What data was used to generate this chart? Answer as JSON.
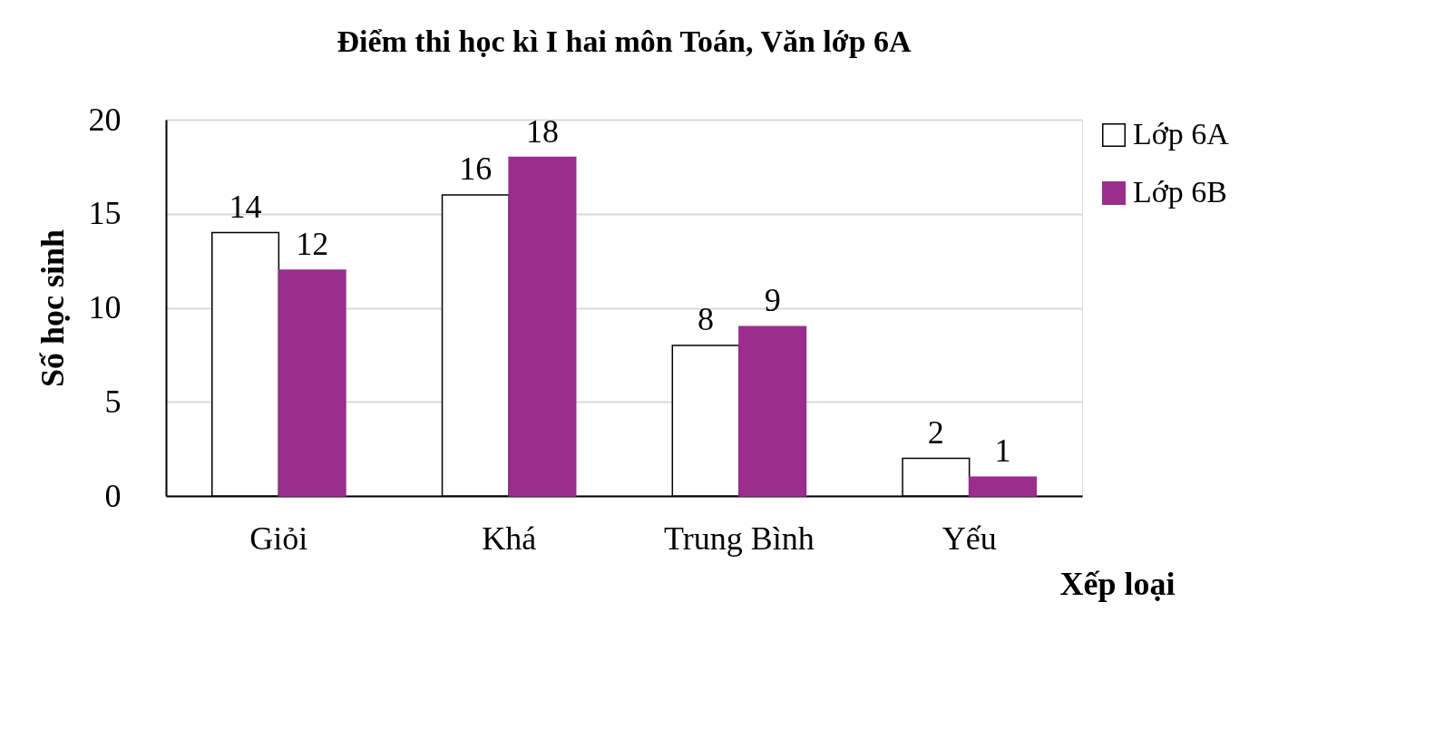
{
  "chart_data": {
    "type": "bar",
    "title": "Điểm thi học kì I hai môn Toán, Văn lớp 6A",
    "xlabel": "Xếp loại",
    "ylabel": "Số học sinh",
    "categories": [
      "Giỏi",
      "Khá",
      "Trung Bình",
      "Yếu"
    ],
    "series": [
      {
        "name": "Lớp 6A",
        "color": "#ffffff",
        "values": [
          14,
          16,
          8,
          2
        ]
      },
      {
        "name": "Lớp 6B",
        "color": "#9b2d8f",
        "values": [
          12,
          18,
          9,
          1
        ]
      }
    ],
    "ylim": [
      0,
      20
    ],
    "yticks": [
      0,
      5,
      10,
      15,
      20
    ],
    "grid": "y",
    "legend": "right",
    "data_labels": true
  }
}
